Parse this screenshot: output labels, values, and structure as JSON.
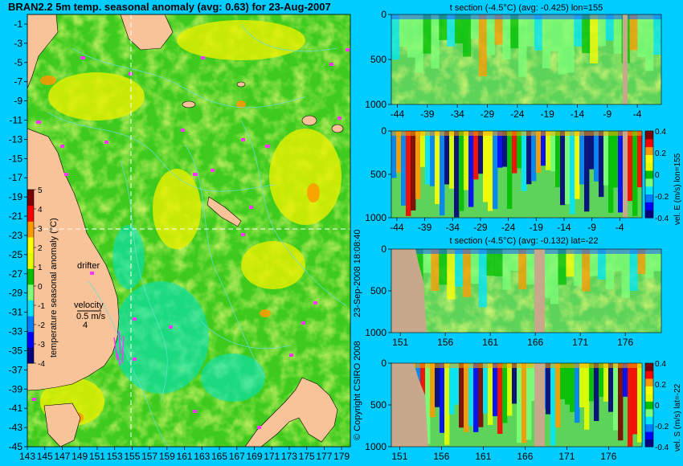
{
  "main_title": "BRAN2.2 5m temp. seasonal anomaly (avg: 0.63) for 23-Aug-2007",
  "copyright": "© Copyright CSIRO 2008",
  "timestamp": "23-Sep-2008 18:08:40",
  "colors": {
    "background": "#00ccff",
    "land": "#f9c39a",
    "section_land": "#c8a88a",
    "drifter": "#ff33ff",
    "contour": "#66dddd",
    "crosshair": "#ffffff"
  },
  "colormap": [
    "#00007f",
    "#0000ff",
    "#0080ff",
    "#00e5ff",
    "#7dff7a",
    "#00c000",
    "#e5ff00",
    "#ffff00",
    "#ff9900",
    "#ff0000",
    "#7f0000"
  ],
  "chart_data": [
    {
      "type": "heatmap",
      "title": "BRAN2.2 5m temp. seasonal anomaly (avg: 0.63) for 23-Aug-2007",
      "xticks": [
        "143",
        "145",
        "147",
        "149",
        "151",
        "153",
        "155",
        "157",
        "159",
        "161",
        "163",
        "165",
        "167",
        "169",
        "171",
        "173",
        "175",
        "177",
        "179"
      ],
      "yticks": [
        "-1",
        "-3",
        "-5",
        "-7",
        "-9",
        "-11",
        "-13",
        "-15",
        "-17",
        "-19",
        "-21",
        "-23",
        "-25",
        "-27",
        "-29",
        "-31",
        "-33",
        "-35",
        "-37",
        "-39",
        "-41",
        "-43",
        "-45"
      ],
      "xlim": [
        143,
        180
      ],
      "ylim": [
        -45,
        0
      ],
      "crosshair": {
        "lon": 155,
        "lat": -22
      },
      "colorbar": {
        "label": "temperature seasonal anomaly (°C)",
        "ticks": [
          "5",
          "4",
          "3",
          "2",
          "1",
          "0",
          "-1",
          "-2",
          "-3",
          "-4"
        ],
        "range": [
          -4,
          5
        ]
      },
      "annotations": {
        "drifter": "drifter",
        "velocity": "velocity",
        "velocity_scale": "0.5 m/s",
        "velocity_scale_2": "4"
      }
    },
    {
      "type": "heatmap",
      "title": "t section (-4.5°C) (avg: -0.425) lon=155",
      "xticks": [
        "-44",
        "-39",
        "-34",
        "-29",
        "-24",
        "-19",
        "-14",
        "-9",
        "-4"
      ],
      "yticks": [
        "0",
        "500",
        "1000"
      ],
      "xlim": [
        -45,
        0
      ],
      "ylim": [
        1000,
        0
      ]
    },
    {
      "type": "heatmap",
      "title": "",
      "xticks": [
        "-44",
        "-39",
        "-34",
        "-29",
        "-24",
        "-19",
        "-14",
        "-9",
        "-4"
      ],
      "yticks": [
        "0",
        "500",
        "1000"
      ],
      "xlim": [
        -45,
        0
      ],
      "ylim": [
        1000,
        0
      ],
      "colorbar": {
        "label": "vel. E (m/s) lon=155",
        "ticks": [
          "0.4",
          "0.2",
          "0",
          "-0.2",
          "-0.4"
        ],
        "range": [
          -0.4,
          0.4
        ]
      }
    },
    {
      "type": "heatmap",
      "title": "t section (-4.5°C) (avg: -0.132) lat=-22",
      "xticks": [
        "151",
        "156",
        "161",
        "166",
        "171",
        "176"
      ],
      "yticks": [
        "0",
        "500",
        "1000"
      ],
      "xlim": [
        150,
        180
      ],
      "ylim": [
        1000,
        0
      ]
    },
    {
      "type": "heatmap",
      "title": "",
      "xticks": [
        "151",
        "156",
        "161",
        "166",
        "171",
        "176"
      ],
      "yticks": [
        "0",
        "500",
        "1000"
      ],
      "xlim": [
        150,
        180
      ],
      "ylim": [
        1000,
        0
      ],
      "colorbar": {
        "label": "vel. S (m/s) lat=-22",
        "ticks": [
          "0.4",
          "0.2",
          "0",
          "-0.2",
          "-0.4"
        ],
        "range": [
          -0.4,
          0.4
        ]
      }
    }
  ]
}
